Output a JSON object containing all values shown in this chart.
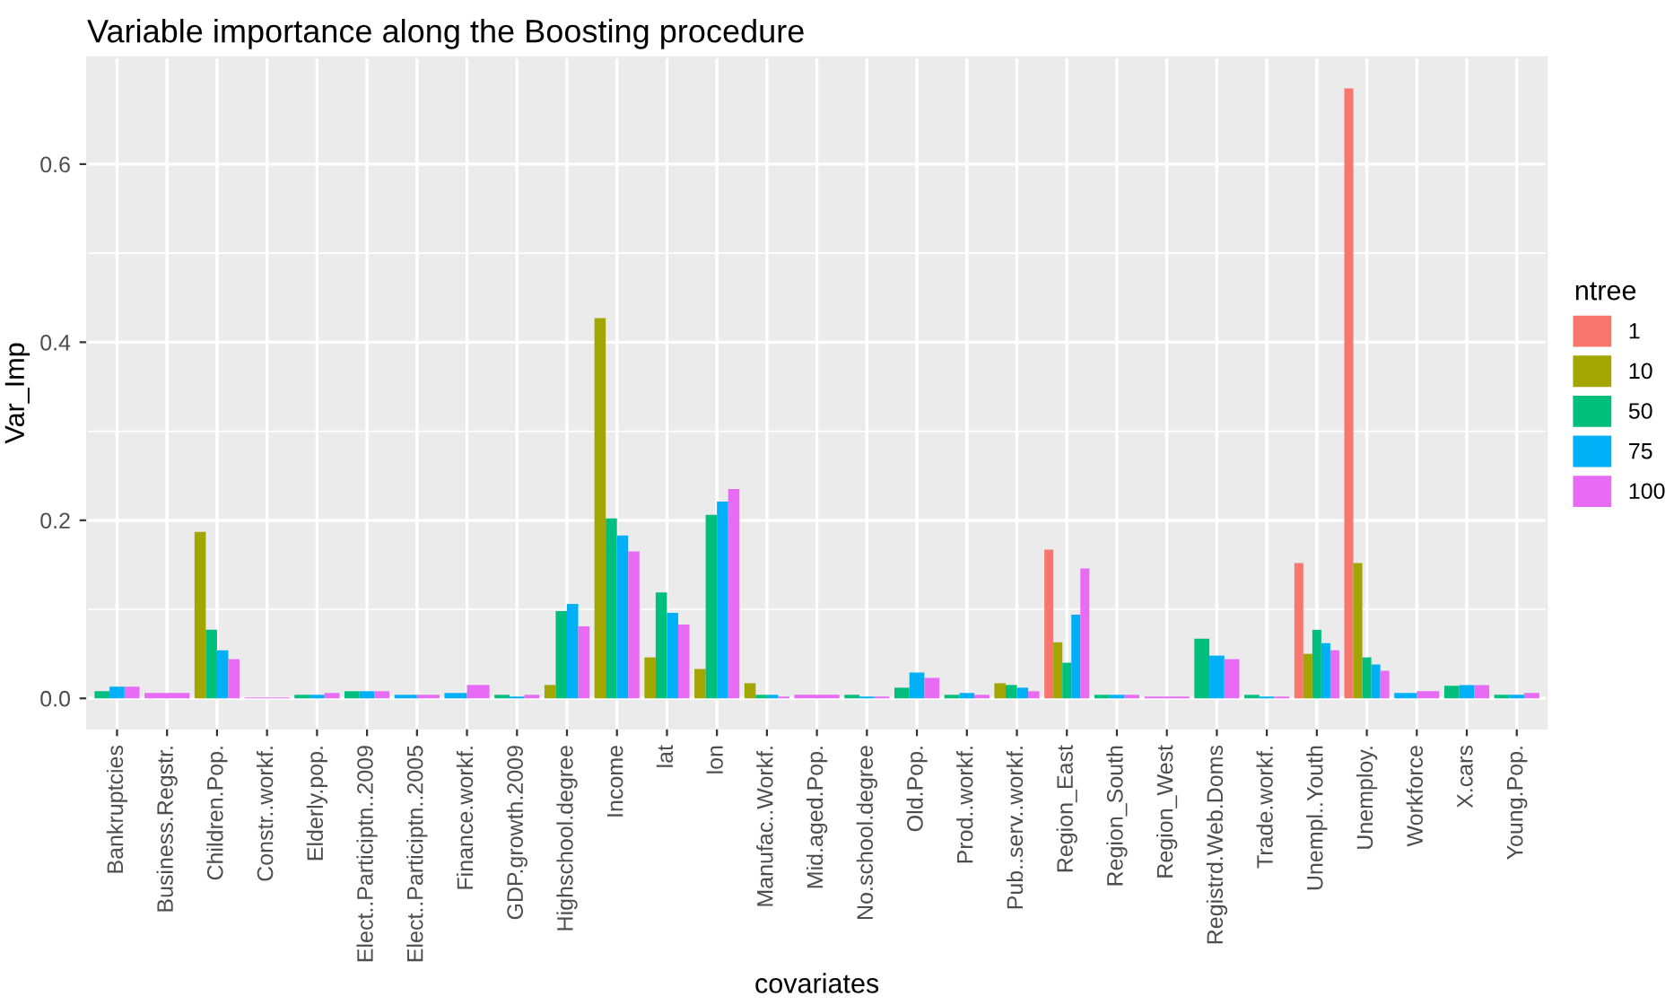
{
  "chart_data": {
    "type": "bar",
    "title": "Variable importance along the Boosting procedure",
    "xlabel": "covariates",
    "ylabel": "Var_Imp",
    "legend_title": "ntree",
    "legend": "right",
    "grid": true,
    "categories": [
      "Bankruptcies",
      "Business.Regstr.",
      "Children.Pop.",
      "Constr..workf.",
      "Elderly.pop.",
      "Elect..Participtn..2009",
      "Elect..Participtn..2005",
      "Finance.workf.",
      "GDP.growth.2009",
      "Highschool.degree",
      "Income",
      "lat",
      "lon",
      "Manufac..Workf.",
      "Mid.aged.Pop.",
      "No.school.degree",
      "Old.Pop.",
      "Prod..workf.",
      "Pub..serv..workf.",
      "Region_East",
      "Region_South",
      "Region_West",
      "Registrd.Web.Doms",
      "Trade.workf.",
      "Unempl..Youth",
      "Unemploy.",
      "Workforce",
      "X.cars",
      "Young.Pop."
    ],
    "ylim": [
      -0.034,
      0.72
    ],
    "yticks": [
      {
        "value": 0,
        "label": "0.0"
      },
      {
        "value": 0.2,
        "label": "0.2"
      },
      {
        "value": 0.4,
        "label": "0.4"
      },
      {
        "value": 0.6,
        "label": "0.6"
      }
    ],
    "series": [
      {
        "name": "1",
        "color": "#f8766d",
        "values": [
          null,
          null,
          null,
          null,
          null,
          null,
          null,
          null,
          null,
          null,
          null,
          null,
          null,
          null,
          null,
          null,
          null,
          null,
          null,
          0.167,
          null,
          null,
          null,
          null,
          0.152,
          0.685,
          null,
          null,
          null
        ]
      },
      {
        "name": "10",
        "color": "#a3a500",
        "values": [
          null,
          null,
          0.187,
          null,
          null,
          null,
          null,
          null,
          null,
          0.015,
          0.427,
          0.046,
          0.033,
          0.017,
          null,
          null,
          null,
          null,
          0.017,
          0.063,
          null,
          null,
          null,
          null,
          0.05,
          0.152,
          null,
          null,
          null
        ]
      },
      {
        "name": "50",
        "color": "#00bf7d",
        "values": [
          0.008,
          null,
          0.077,
          null,
          0.004,
          0.008,
          null,
          null,
          0.004,
          0.098,
          0.202,
          0.119,
          0.206,
          0.004,
          null,
          0.004,
          0.012,
          0.004,
          0.015,
          0.04,
          0.004,
          null,
          0.067,
          0.004,
          0.077,
          0.046,
          null,
          0.014,
          0.004
        ]
      },
      {
        "name": "75",
        "color": "#00b0f6",
        "values": [
          0.013,
          null,
          0.054,
          null,
          0.004,
          0.008,
          0.004,
          0.006,
          0.002,
          0.106,
          0.183,
          0.096,
          0.221,
          0.004,
          null,
          0.002,
          0.029,
          0.006,
          0.012,
          0.094,
          0.004,
          null,
          0.048,
          0.002,
          0.062,
          0.038,
          0.006,
          0.015,
          0.004
        ]
      },
      {
        "name": "100",
        "color": "#e76bf3",
        "values": [
          0.013,
          0.006,
          0.044,
          0.001,
          0.006,
          0.008,
          0.004,
          0.015,
          0.004,
          0.081,
          0.165,
          0.083,
          0.235,
          0.002,
          0.004,
          0.002,
          0.023,
          0.004,
          0.008,
          0.146,
          0.004,
          0.002,
          0.044,
          0.002,
          0.054,
          0.031,
          0.008,
          0.015,
          0.006
        ]
      }
    ]
  }
}
